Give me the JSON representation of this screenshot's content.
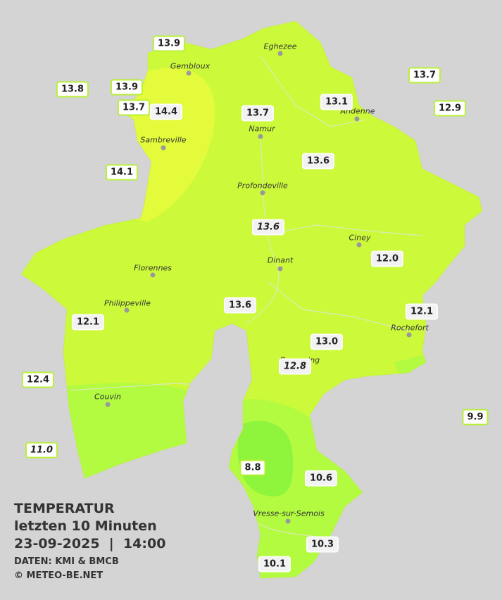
{
  "title": {
    "heading": "TEMPERATUR",
    "period": "letzten 10 Minuten",
    "datetime": "23-09-2025  |  14:00",
    "source": "DATEN: KMI & BMCB",
    "copyright": "© METEO-BE.NET"
  },
  "cities": [
    "Eghezee",
    "Gembloux",
    "Andenne",
    "Namur",
    "Sambreville",
    "Profondeville",
    "Ciney",
    "Florennes",
    "Dinant",
    "Philippeville",
    "Rochefort",
    "Beauraing",
    "Couvin",
    "Vresse-sur-Semois"
  ],
  "stations": [
    "13.9",
    "13.8",
    "13.9",
    "13.7",
    "14.4",
    "13.7",
    "13.1",
    "13.7",
    "12.9",
    "14.1",
    "13.6",
    "13.6",
    "12.0",
    "13.6",
    "12.1",
    "12.1",
    "13.0",
    "12.8",
    "12.4",
    "9.9",
    "11.0",
    "8.8",
    "10.6",
    "10.3",
    "10.1"
  ]
}
